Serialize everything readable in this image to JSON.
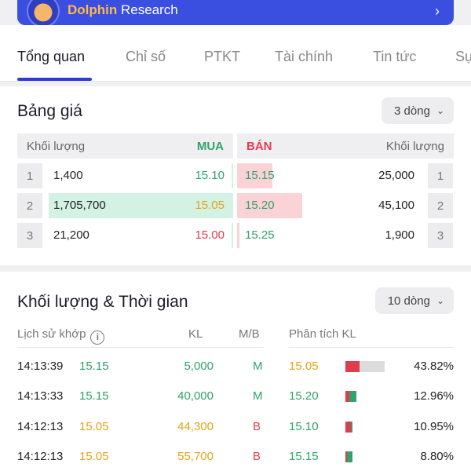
{
  "banner": {
    "brand": "Dolphin",
    "suffix": " Research"
  },
  "tabs": [
    "Tổng quan",
    "Chỉ số",
    "PTKT",
    "Tài chính",
    "Tin tức",
    "Sự"
  ],
  "order_book": {
    "title": "Bảng giá",
    "dropdown": "3 dòng",
    "headers": {
      "bid_volume": "Khối lượng",
      "buy": "MUA",
      "sell": "BÁN",
      "ask_volume": "Khối lượng"
    },
    "rows": [
      {
        "level": "1",
        "bid_volume": "1,400",
        "bid_price": "15.10",
        "ask_price": "15.15",
        "ask_volume": "25,000",
        "level_right": "1",
        "bid_fill": 0.0,
        "ask_fill": 0.3
      },
      {
        "level": "2",
        "bid_volume": "1,705,700",
        "bid_price": "15.05",
        "ask_price": "15.20",
        "ask_volume": "45,100",
        "level_right": "2",
        "bid_fill": 1.0,
        "ask_fill": 0.55
      },
      {
        "level": "3",
        "bid_volume": "21,200",
        "bid_price": "15.00",
        "ask_price": "15.25",
        "ask_volume": "1,900",
        "level_right": "3",
        "bid_fill": 0.01,
        "ask_fill": 0.02
      }
    ]
  },
  "trades": {
    "title": "Khối lượng & Thời gian",
    "dropdown": "10 dòng",
    "headers": {
      "history": "Lịch sử khớp",
      "volume": "KL",
      "side": "M/B",
      "analysis": "Phân tích KL"
    },
    "rows": [
      {
        "time": "14:13:39",
        "price": "15.15",
        "price_color": "#2fa36b",
        "volume": "5,000",
        "volume_color": "#2fa36b",
        "side": "M",
        "side_color": "#2fa36b",
        "an_price": "15.05",
        "an_price_color": "#e0a41a",
        "pct": "43.82%",
        "red_fill": 0.36,
        "green_fill": 0.0
      },
      {
        "time": "14:13:33",
        "price": "15.15",
        "price_color": "#2fa36b",
        "volume": "40,000",
        "volume_color": "#2fa36b",
        "side": "M",
        "side_color": "#2fa36b",
        "an_price": "15.20",
        "an_price_color": "#2fa36b",
        "pct": "12.96%",
        "red_fill": 0.1,
        "green_fill": 0.18
      },
      {
        "time": "14:12:13",
        "price": "15.05",
        "price_color": "#e0a41a",
        "volume": "44,300",
        "volume_color": "#e0a41a",
        "side": "B",
        "side_color": "#e03c4d",
        "an_price": "15.10",
        "an_price_color": "#2fa36b",
        "pct": "10.95%",
        "red_fill": 0.14,
        "green_fill": 0.04
      },
      {
        "time": "14:12:13",
        "price": "15.05",
        "price_color": "#e0a41a",
        "volume": "55,700",
        "volume_color": "#e0a41a",
        "side": "B",
        "side_color": "#e03c4d",
        "an_price": "15.15",
        "an_price_color": "#2fa36b",
        "pct": "8.80%",
        "red_fill": 0.04,
        "green_fill": 0.14
      }
    ]
  }
}
